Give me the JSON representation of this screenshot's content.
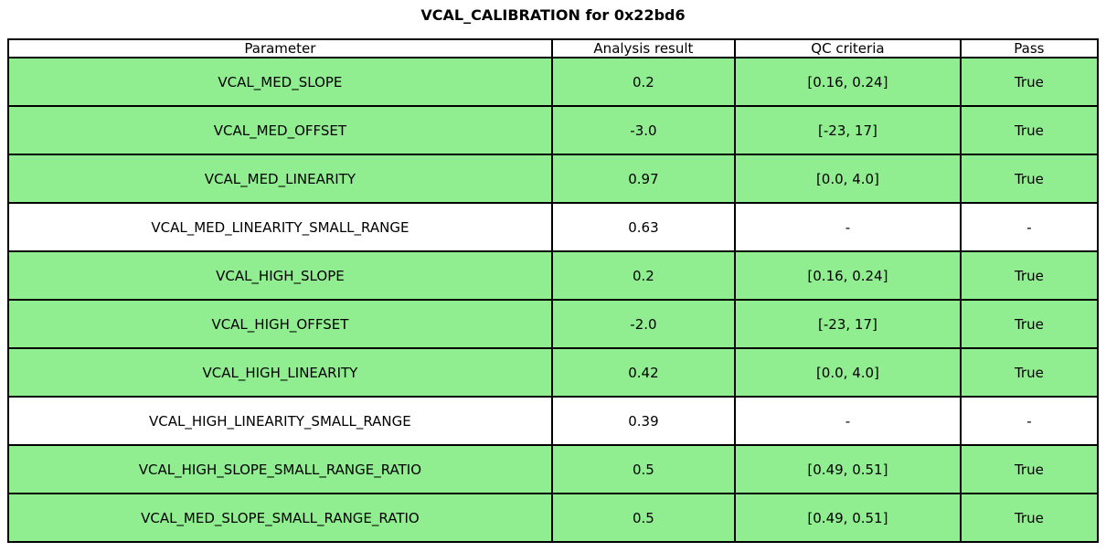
{
  "chart_data": {
    "type": "table",
    "title": "VCAL_CALIBRATION for 0x22bd6",
    "columns": [
      "Parameter",
      "Analysis result",
      "QC criteria",
      "Pass"
    ],
    "rows": [
      {
        "parameter": "VCAL_MED_SLOPE",
        "result": "0.2",
        "criteria": "[0.16, 0.24]",
        "pass": "True",
        "highlight": true
      },
      {
        "parameter": "VCAL_MED_OFFSET",
        "result": "-3.0",
        "criteria": "[-23, 17]",
        "pass": "True",
        "highlight": true
      },
      {
        "parameter": "VCAL_MED_LINEARITY",
        "result": "0.97",
        "criteria": "[0.0, 4.0]",
        "pass": "True",
        "highlight": true
      },
      {
        "parameter": "VCAL_MED_LINEARITY_SMALL_RANGE",
        "result": "0.63",
        "criteria": "-",
        "pass": "-",
        "highlight": false
      },
      {
        "parameter": "VCAL_HIGH_SLOPE",
        "result": "0.2",
        "criteria": "[0.16, 0.24]",
        "pass": "True",
        "highlight": true
      },
      {
        "parameter": "VCAL_HIGH_OFFSET",
        "result": "-2.0",
        "criteria": "[-23, 17]",
        "pass": "True",
        "highlight": true
      },
      {
        "parameter": "VCAL_HIGH_LINEARITY",
        "result": "0.42",
        "criteria": "[0.0, 4.0]",
        "pass": "True",
        "highlight": true
      },
      {
        "parameter": "VCAL_HIGH_LINEARITY_SMALL_RANGE",
        "result": "0.39",
        "criteria": "-",
        "pass": "-",
        "highlight": false
      },
      {
        "parameter": "VCAL_HIGH_SLOPE_SMALL_RANGE_RATIO",
        "result": "0.5",
        "criteria": "[0.49, 0.51]",
        "pass": "True",
        "highlight": true
      },
      {
        "parameter": "VCAL_MED_SLOPE_SMALL_RANGE_RATIO",
        "result": "0.5",
        "criteria": "[0.49, 0.51]",
        "pass": "True",
        "highlight": true
      }
    ],
    "highlight_color": "#90EE90",
    "pass_true_label": "True",
    "not_applicable_label": "-",
    "layout": {
      "grid": "full-borders",
      "legend": "none"
    }
  }
}
